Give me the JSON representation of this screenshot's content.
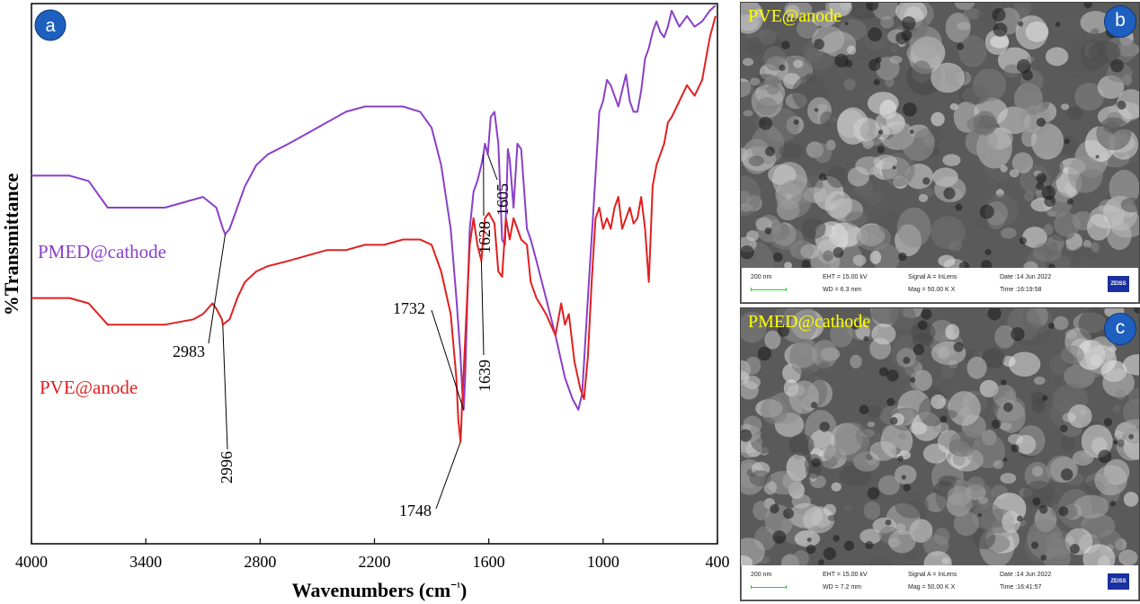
{
  "panel_a": {
    "badge": "a"
  },
  "chart_data": {
    "type": "line",
    "title": "",
    "xlabel": "Wavenumbers (cm⁻¹)",
    "ylabel": "%Transmittance",
    "x_reversed": true,
    "xlim": [
      4000,
      400
    ],
    "x_ticks": [
      "4000",
      "3400",
      "2800",
      "2200",
      "1600",
      "1000",
      "400"
    ],
    "y_ticks_shown": false,
    "grid": false,
    "series": [
      {
        "name": "PMED@cathode",
        "color": "#8a3fc8",
        "x": [
          4000,
          3800,
          3700,
          3600,
          3500,
          3300,
          3100,
          3030,
          2995,
          2983,
          2960,
          2920,
          2880,
          2820,
          2760,
          2650,
          2550,
          2450,
          2350,
          2250,
          2150,
          2050,
          1960,
          1900,
          1850,
          1800,
          1770,
          1750,
          1740,
          1732,
          1724,
          1712,
          1700,
          1680,
          1660,
          1639,
          1628,
          1620,
          1605,
          1590,
          1570,
          1550,
          1530,
          1515,
          1500,
          1490,
          1470,
          1450,
          1430,
          1400,
          1380,
          1350,
          1300,
          1250,
          1200,
          1160,
          1130,
          1110,
          1080,
          1050,
          1020,
          1000,
          980,
          960,
          940,
          920,
          900,
          880,
          860,
          840,
          820,
          800,
          780,
          760,
          740,
          720,
          700,
          680,
          660,
          640,
          600,
          560,
          520,
          480,
          440,
          410
        ],
        "y": [
          68,
          68,
          67,
          62,
          62,
          62,
          64,
          62,
          58,
          57,
          58,
          62,
          66,
          70,
          72,
          74,
          76,
          78,
          80,
          81,
          81,
          81,
          80,
          77,
          70,
          58,
          45,
          35,
          28,
          24,
          30,
          45,
          58,
          65,
          67,
          70,
          72,
          74,
          72,
          79,
          80,
          74,
          56,
          55,
          73,
          71,
          62,
          74,
          73,
          58,
          56,
          52,
          45,
          38,
          30,
          26,
          24,
          27,
          45,
          62,
          80,
          82,
          86,
          85,
          83,
          81,
          84,
          87,
          82,
          80,
          80,
          84,
          90,
          92,
          95,
          97,
          95,
          94,
          96,
          99,
          96,
          98,
          96,
          97,
          99,
          100
        ]
      },
      {
        "name": "PVE@anode",
        "color": "#e02020",
        "x": [
          4000,
          3800,
          3700,
          3600,
          3500,
          3300,
          3150,
          3100,
          3050,
          3030,
          3000,
          2996,
          2960,
          2920,
          2880,
          2820,
          2760,
          2650,
          2550,
          2450,
          2350,
          2250,
          2150,
          2050,
          1960,
          1900,
          1850,
          1800,
          1770,
          1760,
          1748,
          1740,
          1720,
          1700,
          1680,
          1660,
          1639,
          1620,
          1600,
          1570,
          1550,
          1530,
          1510,
          1490,
          1470,
          1450,
          1430,
          1400,
          1380,
          1350,
          1300,
          1250,
          1220,
          1200,
          1180,
          1150,
          1120,
          1100,
          1080,
          1060,
          1040,
          1020,
          1000,
          980,
          960,
          940,
          920,
          900,
          880,
          860,
          840,
          820,
          800,
          780,
          760,
          740,
          720,
          700,
          680,
          660,
          640,
          600,
          560,
          520,
          480,
          440,
          410
        ],
        "y": [
          45,
          45,
          44,
          40,
          40,
          40,
          41,
          42,
          44,
          43,
          41,
          40,
          41,
          45,
          48,
          50,
          51,
          52,
          53,
          54,
          54,
          55,
          55,
          56,
          56,
          55,
          50,
          42,
          30,
          22,
          18,
          25,
          40,
          55,
          60,
          55,
          52,
          60,
          61,
          59,
          50,
          49,
          60,
          56,
          60,
          58,
          56,
          55,
          48,
          45,
          42,
          38,
          44,
          40,
          42,
          33,
          28,
          26,
          34,
          48,
          60,
          62,
          58,
          60,
          58,
          62,
          64,
          58,
          60,
          62,
          59,
          60,
          64,
          58,
          48,
          66,
          70,
          72,
          74,
          78,
          79,
          82,
          85,
          83,
          86,
          94,
          98
        ]
      }
    ],
    "annotations": [
      {
        "text": "2983",
        "x": 2983
      },
      {
        "text": "2996",
        "x": 2996
      },
      {
        "text": "1732",
        "x": 1732
      },
      {
        "text": "1748",
        "x": 1748
      },
      {
        "text": "1639",
        "x": 1639
      },
      {
        "text": "1628",
        "x": 1628
      },
      {
        "text": "1605",
        "x": 1605
      }
    ]
  },
  "panel_b": {
    "badge": "b",
    "title": "PVE@anode",
    "scale": "200 nm",
    "eht": "EHT = 15.00 kV",
    "wd": "WD =  6.3 mm",
    "signal": "Signal A = InLens",
    "mag": "Mag =  50.00 K X",
    "date": "Date :14 Jun 2022",
    "time": "Time :16:19:58",
    "logo": "ZEISS"
  },
  "panel_c": {
    "badge": "c",
    "title": "PMED@cathode",
    "scale": "200 nm",
    "eht": "EHT = 15.00 kV",
    "wd": "WD =  7.2 mm",
    "signal": "Signal A = InLens",
    "mag": "Mag =  50.00 K X",
    "date": "Date :14 Jun 2022",
    "time": "Time :16:41:57",
    "logo": "ZEISS"
  }
}
